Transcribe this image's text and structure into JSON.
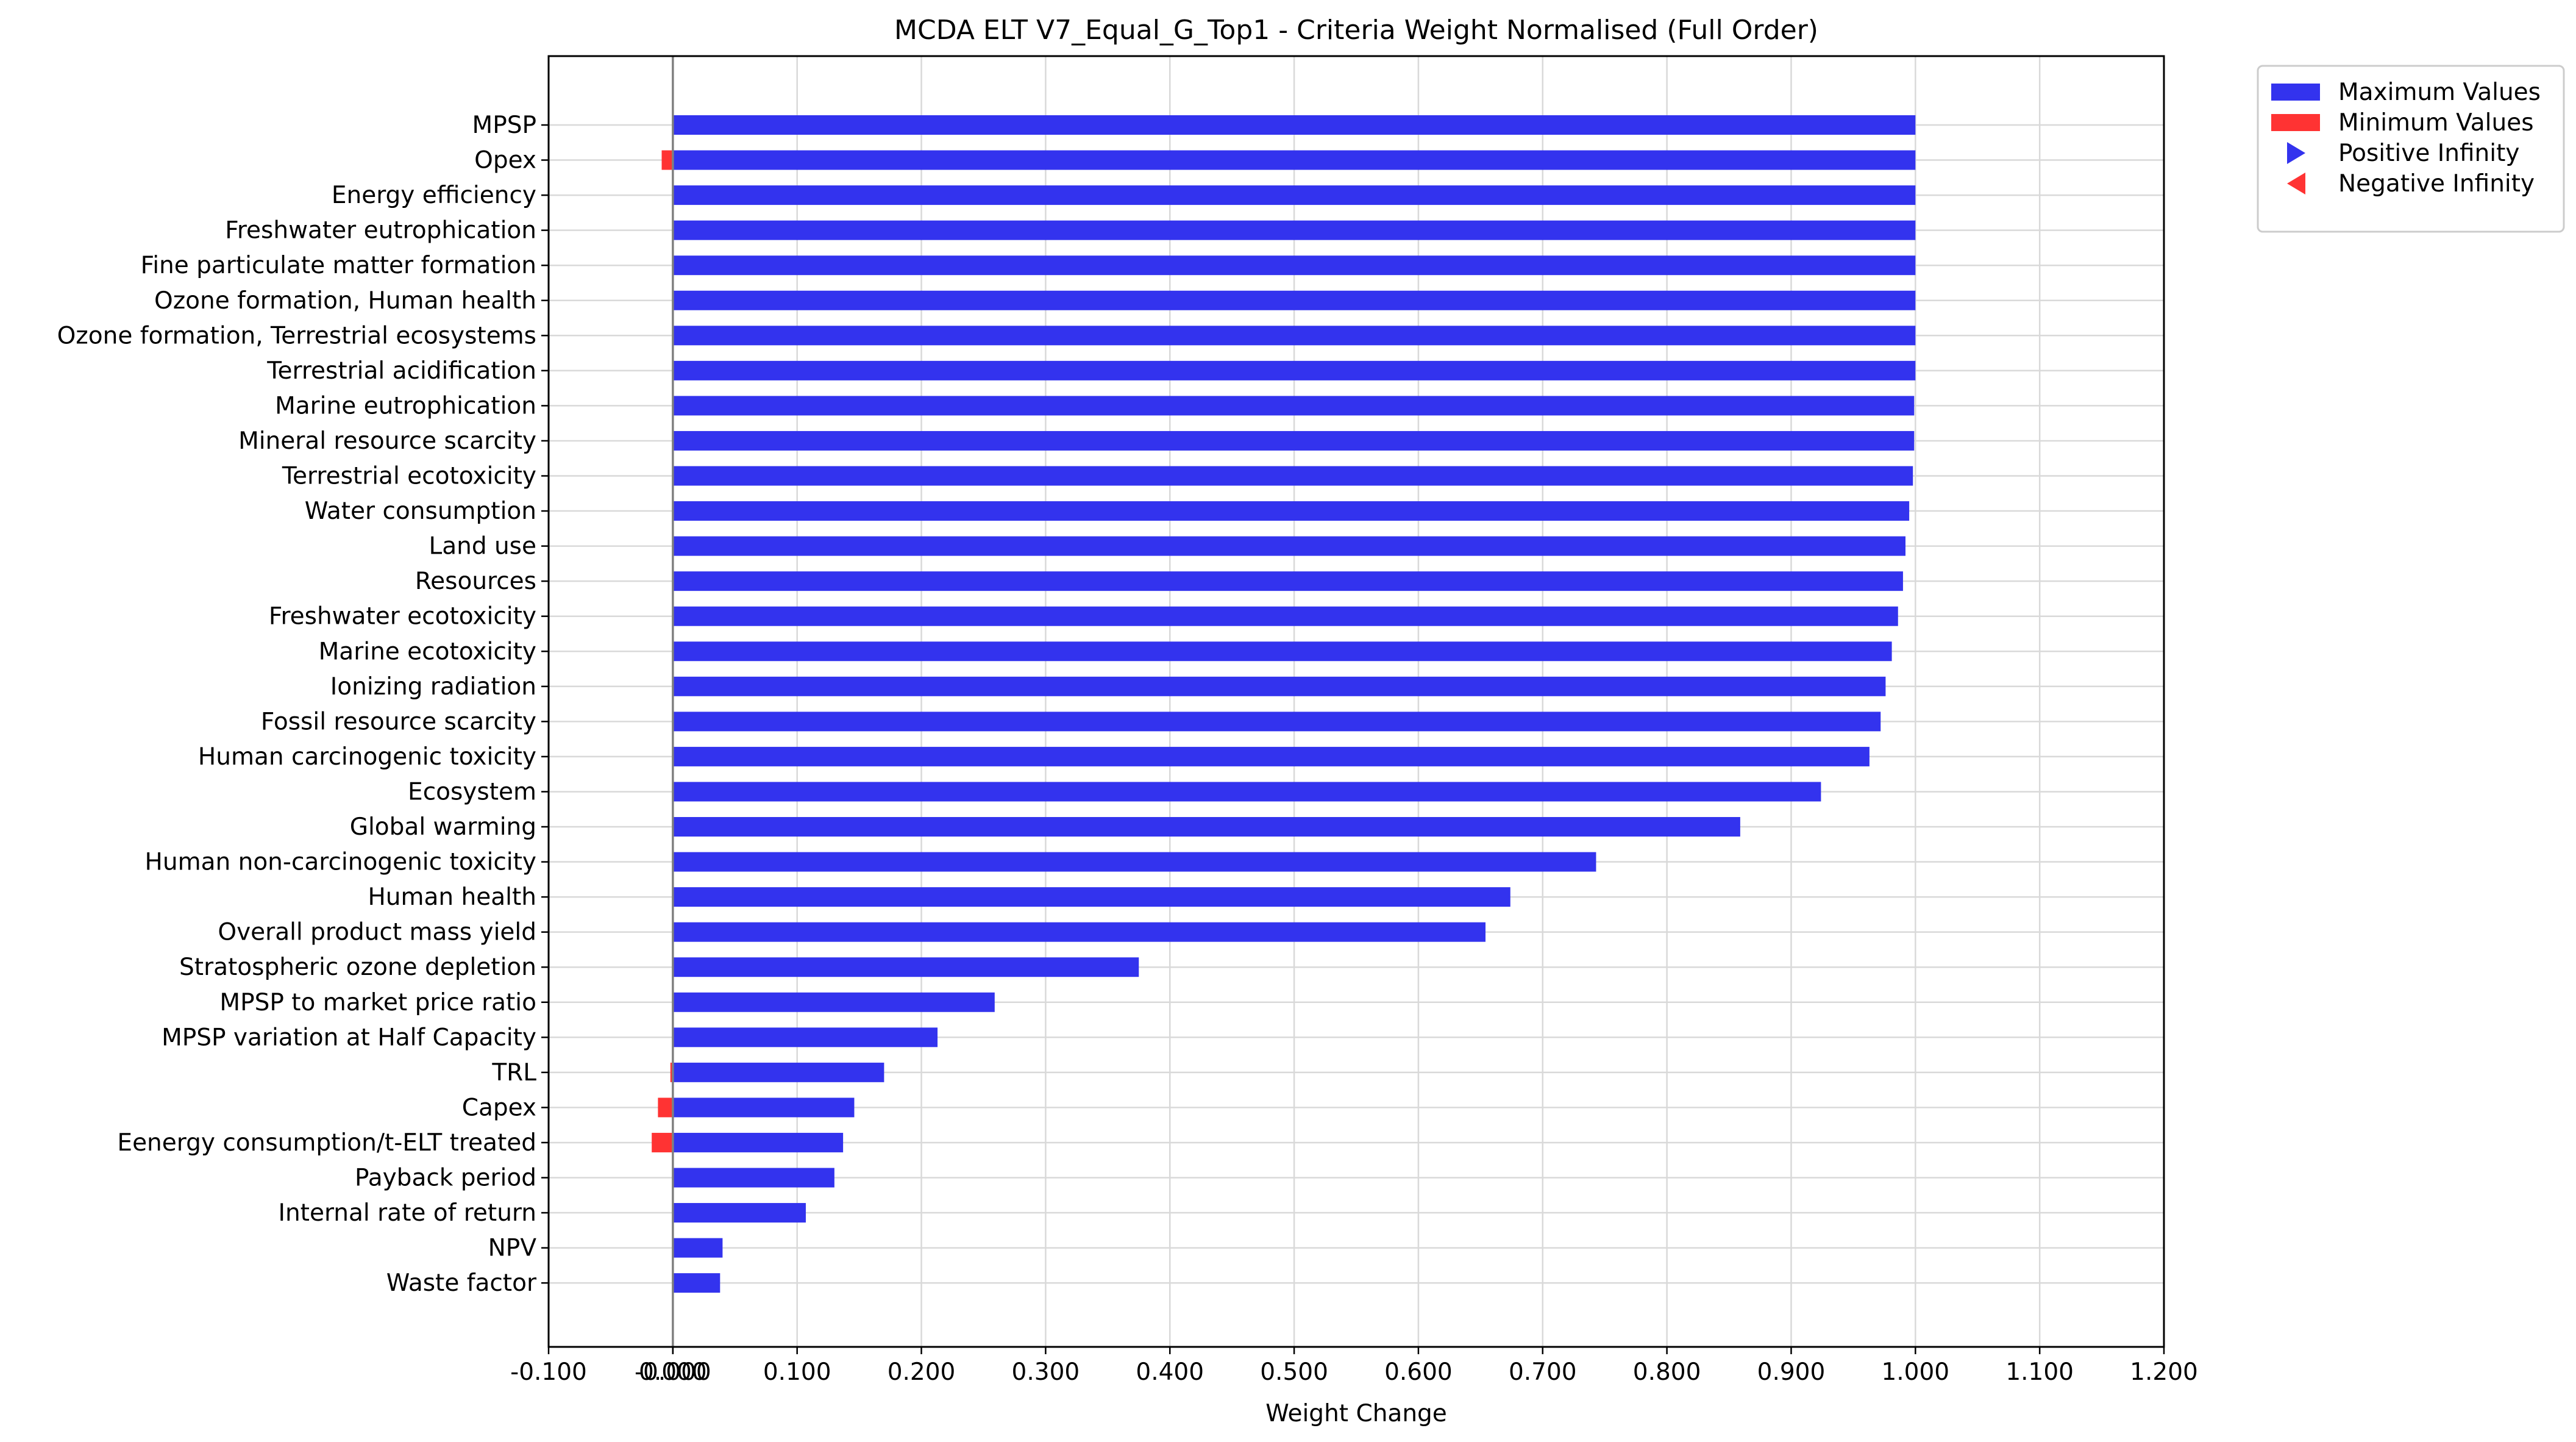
{
  "chart_data": {
    "type": "bar",
    "orientation": "horizontal",
    "title": "MCDA ELT V7_Equal_G_Top1 - Criteria Weight Normalised (Full Order)",
    "xlabel": "Weight Change",
    "ylabel": "",
    "xlim": [
      -0.1,
      1.2
    ],
    "grid": true,
    "legend_position": "outside-top-right",
    "xticks": [
      "-0.100",
      "-0.000",
      "0.000",
      "0.100",
      "0.200",
      "0.300",
      "0.400",
      "0.500",
      "0.600",
      "0.700",
      "0.800",
      "0.900",
      "1.000",
      "1.100",
      "1.200"
    ],
    "xtick_values": [
      -0.1,
      0.0,
      0.0,
      0.1,
      0.2,
      0.3,
      0.4,
      0.5,
      0.6,
      0.7,
      0.8,
      0.9,
      1.0,
      1.1,
      1.2
    ],
    "categories": [
      "MPSP",
      "Opex",
      "Energy efficiency",
      "Freshwater eutrophication",
      "Fine particulate matter formation",
      "Ozone formation, Human health",
      "Ozone formation, Terrestrial ecosystems",
      "Terrestrial acidification",
      "Marine eutrophication",
      "Mineral resource scarcity",
      "Terrestrial ecotoxicity",
      "Water consumption",
      "Land use",
      "Resources",
      "Freshwater ecotoxicity",
      "Marine ecotoxicity",
      "Ionizing radiation",
      "Fossil resource scarcity",
      "Human carcinogenic toxicity",
      "Ecosystem",
      "Global warming",
      "Human non-carcinogenic toxicity",
      "Human health",
      "Overall product mass yield",
      "Stratospheric ozone depletion",
      "MPSP to market price ratio",
      "MPSP variation at Half Capacity",
      "TRL",
      "Capex",
      "Eenergy consumption/t-ELT treated",
      "Payback period",
      "Internal rate of return",
      "NPV",
      "Waste factor"
    ],
    "series": [
      {
        "name": "Maximum Values",
        "color": "#3333ee",
        "values": [
          1.0,
          1.0,
          1.0,
          1.0,
          1.0,
          1.0,
          1.0,
          1.0,
          0.999,
          0.999,
          0.998,
          0.995,
          0.992,
          0.99,
          0.986,
          0.981,
          0.976,
          0.972,
          0.963,
          0.924,
          0.859,
          0.743,
          0.674,
          0.654,
          0.375,
          0.259,
          0.213,
          0.17,
          0.146,
          0.137,
          0.13,
          0.107,
          0.04,
          0.038
        ]
      },
      {
        "name": "Minimum Values",
        "color": "#ff3333",
        "values": [
          0.0,
          -0.009,
          0.0,
          0.0,
          0.0,
          0.0,
          0.0,
          0.0,
          0.0,
          0.0,
          0.0,
          0.0,
          0.0,
          0.0,
          0.0,
          0.0,
          0.0,
          0.0,
          0.0,
          0.0,
          0.0,
          0.0,
          0.0,
          0.0,
          0.0,
          0.0,
          0.0,
          -0.002,
          -0.012,
          -0.017,
          0.0,
          0.0,
          0.0,
          0.0
        ]
      }
    ],
    "legend": [
      {
        "label": "Maximum Values",
        "marker": "bar",
        "color": "#3333ee"
      },
      {
        "label": "Minimum Values",
        "marker": "bar",
        "color": "#ff3333"
      },
      {
        "label": "Positive Infinity",
        "marker": "triangle-right",
        "color": "#3333ee"
      },
      {
        "label": "Negative Infinity",
        "marker": "triangle-left",
        "color": "#ff3333"
      }
    ]
  }
}
